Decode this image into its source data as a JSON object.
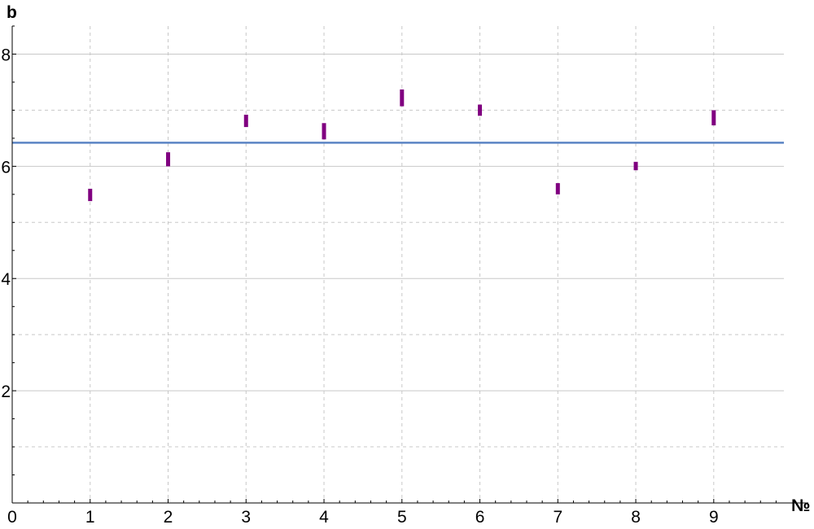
{
  "chart_data": {
    "type": "scatter",
    "xlabel": "№",
    "ylabel": "b",
    "xlim": [
      0,
      9.9
    ],
    "ylim": [
      0,
      8.5
    ],
    "x_ticks": [
      0,
      1,
      2,
      3,
      4,
      5,
      6,
      7,
      8,
      9
    ],
    "x_tick_labels": [
      "0",
      "1",
      "2",
      "3",
      "4",
      "5",
      "6",
      "7",
      "8",
      "9"
    ],
    "y_ticks": [
      0,
      2,
      4,
      6,
      8
    ],
    "y_tick_labels": [
      "0",
      "2",
      "4",
      "6",
      "8"
    ],
    "grid": {
      "major_solid_y": [
        2,
        4,
        6,
        8
      ],
      "minor_dashed_y": [
        1,
        3,
        5,
        7
      ],
      "dashed_x": [
        1,
        2,
        3,
        4,
        5,
        6,
        7,
        8,
        9
      ]
    },
    "reference_line": {
      "value": 6.42,
      "color": "#5b84c4"
    },
    "series": [
      {
        "color": "#800080",
        "points": [
          {
            "x": 1,
            "y_low": 5.38,
            "y_high": 5.6
          },
          {
            "x": 2,
            "y_low": 6.0,
            "y_high": 6.25
          },
          {
            "x": 3,
            "y_low": 6.7,
            "y_high": 6.92
          },
          {
            "x": 4,
            "y_low": 6.48,
            "y_high": 6.77
          },
          {
            "x": 5,
            "y_low": 7.07,
            "y_high": 7.37
          },
          {
            "x": 6,
            "y_low": 6.9,
            "y_high": 7.1
          },
          {
            "x": 7,
            "y_low": 5.5,
            "y_high": 5.7
          },
          {
            "x": 8,
            "y_low": 5.93,
            "y_high": 6.08
          },
          {
            "x": 9,
            "y_low": 6.73,
            "y_high": 7.0
          }
        ]
      }
    ]
  }
}
